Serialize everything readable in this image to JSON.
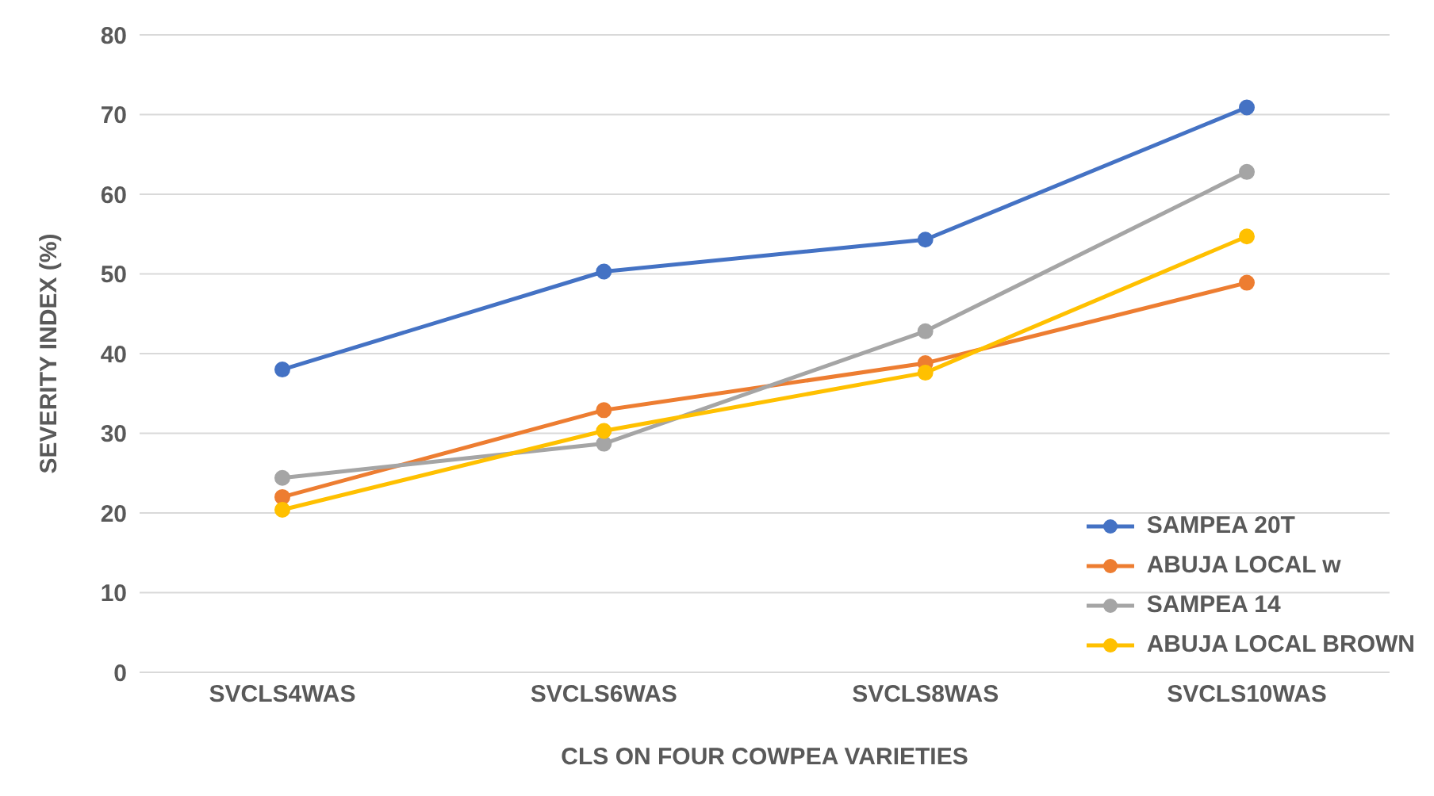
{
  "chart_data": {
    "type": "line",
    "xlabel": "CLS ON FOUR COWPEA VARIETIES",
    "ylabel": "SEVERITY INDEX (%)",
    "categories": [
      "SVCLS4WAS",
      "SVCLS6WAS",
      "SVCLS8WAS",
      "SVCLS10WAS"
    ],
    "series": [
      {
        "name": "SAMPEA 20T",
        "color": "#4472c4",
        "values": [
          38.0,
          50.3,
          54.3,
          70.9
        ]
      },
      {
        "name": "ABUJA LOCAL w",
        "color": "#ed7d31",
        "values": [
          22.0,
          32.9,
          38.8,
          48.9
        ]
      },
      {
        "name": "SAMPEA 14",
        "color": "#a5a5a5",
        "values": [
          24.4,
          28.7,
          42.8,
          62.8
        ]
      },
      {
        "name": "ABUJA LOCAL BROWN",
        "color": "#ffc000",
        "values": [
          20.4,
          30.3,
          37.6,
          54.7
        ]
      }
    ],
    "ylim": [
      0,
      80
    ],
    "yticks": [
      0,
      10,
      20,
      30,
      40,
      50,
      60,
      70,
      80
    ],
    "grid": "y",
    "legend": "bottom right",
    "marker": "circle",
    "line_style": "solid"
  }
}
